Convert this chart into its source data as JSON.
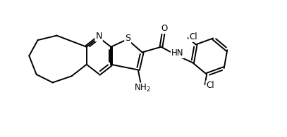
{
  "background_color": "#ffffff",
  "line_color": "#000000",
  "line_width": 1.4,
  "font_size": 8.5,
  "figure_width": 4.07,
  "figure_height": 1.95,
  "dpi": 100,
  "xlim": [
    0,
    10
  ],
  "ylim": [
    0,
    5
  ]
}
